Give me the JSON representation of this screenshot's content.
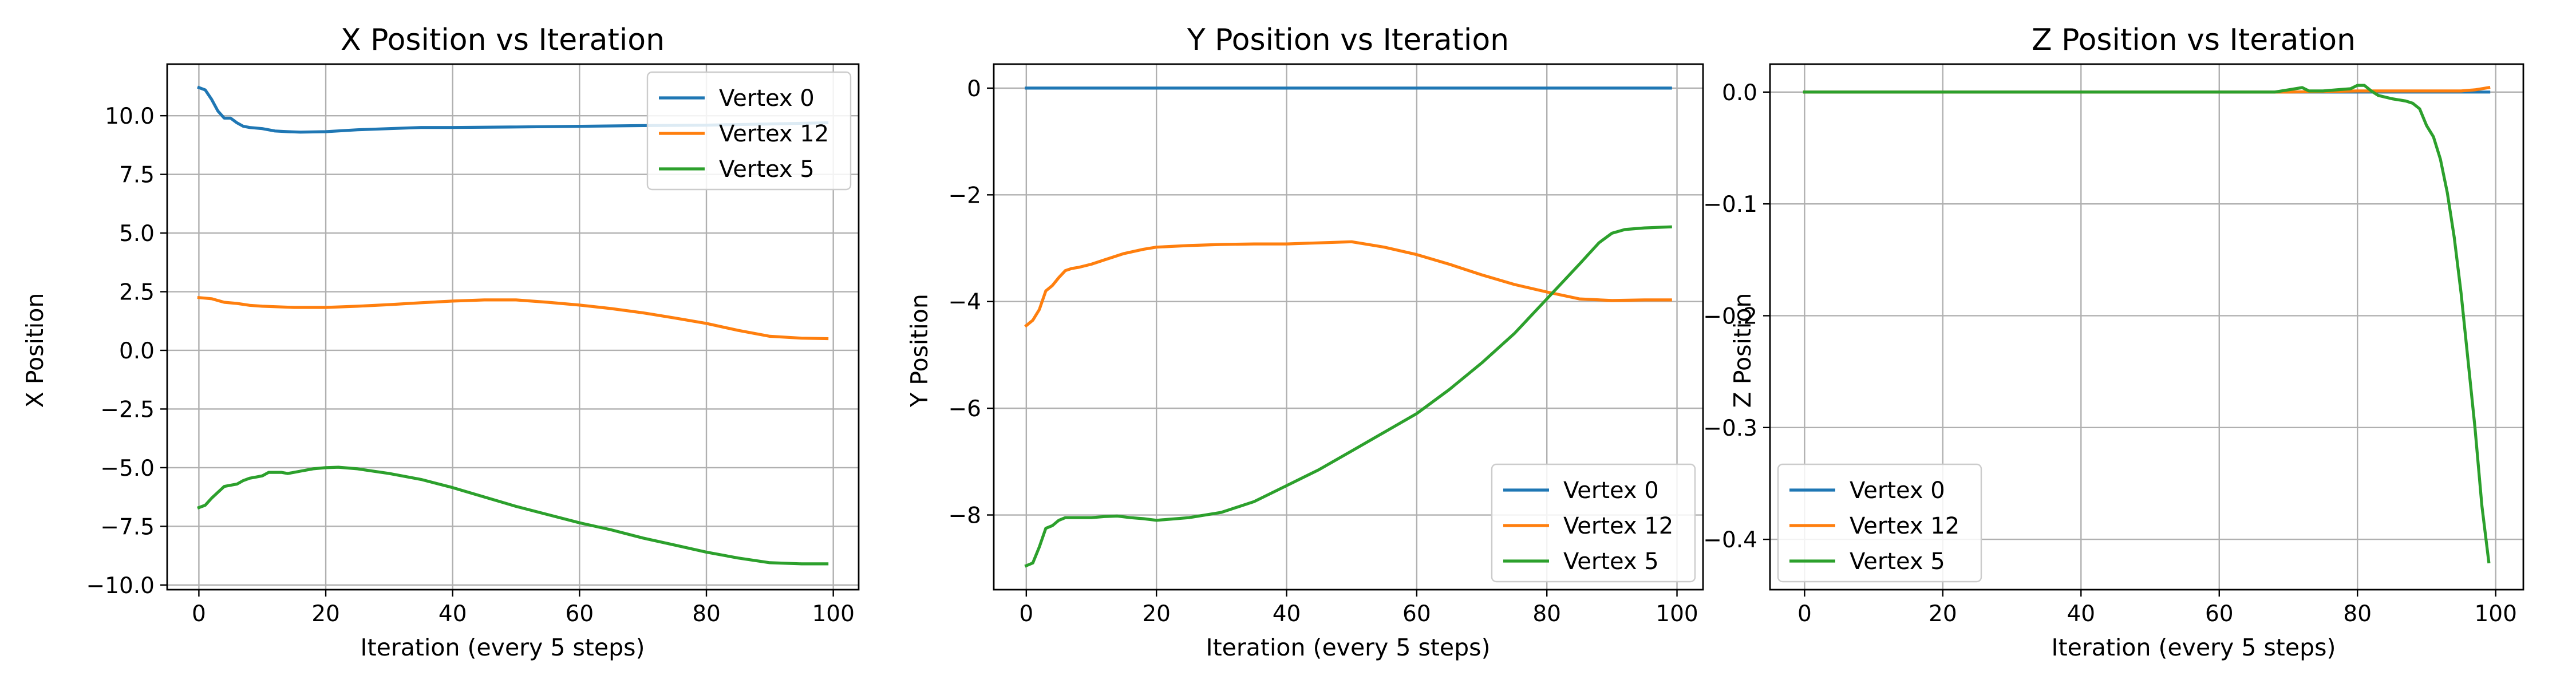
{
  "chart_data": [
    {
      "type": "line",
      "title": "X Position vs Iteration",
      "xlabel": "Iteration (every 5 steps)",
      "ylabel": "X Position",
      "xlim": [
        -5,
        104
      ],
      "ylim": [
        -10.2,
        12.2
      ],
      "xticks": [
        0,
        20,
        40,
        60,
        80,
        100
      ],
      "yticks": [
        -10.0,
        -7.5,
        -5.0,
        -2.5,
        0.0,
        2.5,
        5.0,
        7.5,
        10.0
      ],
      "ytick_labels": [
        "−10.0",
        "−7.5",
        "−5.0",
        "−2.5",
        "0.0",
        "2.5",
        "5.0",
        "7.5",
        "10.0"
      ],
      "grid": true,
      "legend": "top-right",
      "series": [
        {
          "name": "Vertex 0",
          "color": "#1f77b4",
          "x": [
            0,
            1,
            2,
            3,
            4,
            5,
            6,
            7,
            8,
            10,
            12,
            14,
            16,
            20,
            25,
            30,
            35,
            40,
            50,
            60,
            70,
            80,
            90,
            99
          ],
          "y": [
            11.2,
            11.1,
            10.7,
            10.2,
            9.9,
            9.9,
            9.7,
            9.55,
            9.5,
            9.45,
            9.35,
            9.32,
            9.3,
            9.32,
            9.4,
            9.45,
            9.5,
            9.5,
            9.52,
            9.55,
            9.58,
            9.6,
            9.65,
            9.7
          ]
        },
        {
          "name": "Vertex 12",
          "color": "#ff7f0e",
          "x": [
            0,
            2,
            4,
            6,
            8,
            10,
            15,
            20,
            25,
            30,
            35,
            40,
            45,
            50,
            55,
            60,
            65,
            70,
            75,
            80,
            85,
            90,
            95,
            99
          ],
          "y": [
            2.25,
            2.2,
            2.05,
            2.0,
            1.92,
            1.88,
            1.83,
            1.83,
            1.88,
            1.95,
            2.03,
            2.1,
            2.15,
            2.15,
            2.05,
            1.93,
            1.78,
            1.6,
            1.38,
            1.15,
            0.85,
            0.6,
            0.52,
            0.5
          ]
        },
        {
          "name": "Vertex 5",
          "color": "#2ca02c",
          "x": [
            0,
            1,
            2,
            3,
            4,
            5,
            6,
            7,
            8,
            9,
            10,
            11,
            12,
            13,
            14,
            15,
            16,
            18,
            20,
            22,
            25,
            30,
            35,
            40,
            45,
            50,
            55,
            60,
            65,
            70,
            75,
            80,
            85,
            90,
            95,
            99
          ],
          "y": [
            -6.7,
            -6.6,
            -6.3,
            -6.05,
            -5.8,
            -5.75,
            -5.7,
            -5.55,
            -5.45,
            -5.4,
            -5.35,
            -5.2,
            -5.2,
            -5.2,
            -5.25,
            -5.2,
            -5.15,
            -5.05,
            -5.0,
            -4.98,
            -5.05,
            -5.25,
            -5.5,
            -5.85,
            -6.25,
            -6.65,
            -7.0,
            -7.35,
            -7.65,
            -8.0,
            -8.3,
            -8.6,
            -8.85,
            -9.05,
            -9.1,
            -9.1
          ]
        }
      ]
    },
    {
      "type": "line",
      "title": "Y Position vs Iteration",
      "xlabel": "Iteration (every 5 steps)",
      "ylabel": "Y Position",
      "xlim": [
        -5,
        104
      ],
      "ylim": [
        -9.4,
        0.45
      ],
      "xticks": [
        0,
        20,
        40,
        60,
        80,
        100
      ],
      "yticks": [
        -8,
        -6,
        -4,
        -2,
        0
      ],
      "ytick_labels": [
        "−8",
        "−6",
        "−4",
        "−2",
        "0"
      ],
      "grid": true,
      "legend": "bottom-right",
      "series": [
        {
          "name": "Vertex 0",
          "color": "#1f77b4",
          "x": [
            0,
            20,
            40,
            60,
            80,
            99
          ],
          "y": [
            0,
            0,
            0,
            0,
            0,
            0
          ]
        },
        {
          "name": "Vertex 12",
          "color": "#ff7f0e",
          "x": [
            0,
            1,
            2,
            3,
            4,
            5,
            6,
            7,
            8,
            10,
            12,
            15,
            18,
            20,
            25,
            30,
            35,
            40,
            45,
            50,
            55,
            60,
            65,
            70,
            75,
            80,
            85,
            90,
            95,
            99
          ],
          "y": [
            -4.45,
            -4.35,
            -4.15,
            -3.8,
            -3.7,
            -3.55,
            -3.42,
            -3.38,
            -3.36,
            -3.3,
            -3.22,
            -3.1,
            -3.02,
            -2.98,
            -2.95,
            -2.93,
            -2.92,
            -2.92,
            -2.9,
            -2.88,
            -2.98,
            -3.12,
            -3.3,
            -3.5,
            -3.68,
            -3.82,
            -3.95,
            -3.98,
            -3.97,
            -3.97
          ]
        },
        {
          "name": "Vertex 5",
          "color": "#2ca02c",
          "x": [
            0,
            1,
            2,
            3,
            4,
            5,
            6,
            7,
            8,
            10,
            12,
            14,
            16,
            18,
            20,
            25,
            30,
            35,
            40,
            45,
            50,
            55,
            60,
            65,
            70,
            75,
            80,
            85,
            88,
            90,
            92,
            95,
            99
          ],
          "y": [
            -8.95,
            -8.9,
            -8.6,
            -8.25,
            -8.2,
            -8.1,
            -8.05,
            -8.05,
            -8.05,
            -8.05,
            -8.03,
            -8.02,
            -8.05,
            -8.07,
            -8.1,
            -8.05,
            -7.95,
            -7.75,
            -7.45,
            -7.15,
            -6.8,
            -6.45,
            -6.1,
            -5.65,
            -5.15,
            -4.6,
            -3.95,
            -3.3,
            -2.9,
            -2.72,
            -2.65,
            -2.62,
            -2.6
          ]
        }
      ]
    },
    {
      "type": "line",
      "title": "Z Position vs Iteration",
      "xlabel": "Iteration (every 5 steps)",
      "ylabel": "Z Position",
      "xlim": [
        -5,
        104
      ],
      "ylim": [
        -0.445,
        0.025
      ],
      "xticks": [
        0,
        20,
        40,
        60,
        80,
        100
      ],
      "yticks": [
        -0.4,
        -0.3,
        -0.2,
        -0.1,
        0.0
      ],
      "ytick_labels": [
        "−0.4",
        "−0.3",
        "−0.2",
        "−0.1",
        "0.0"
      ],
      "grid": true,
      "legend": "bottom-left",
      "series": [
        {
          "name": "Vertex 0",
          "color": "#1f77b4",
          "x": [
            0,
            20,
            40,
            60,
            80,
            99
          ],
          "y": [
            0,
            0,
            0,
            0,
            0,
            0
          ]
        },
        {
          "name": "Vertex 12",
          "color": "#ff7f0e",
          "x": [
            0,
            20,
            40,
            60,
            70,
            80,
            85,
            90,
            95,
            97,
            99
          ],
          "y": [
            0,
            0,
            0,
            0,
            0,
            0.001,
            0.001,
            0.001,
            0.001,
            0.002,
            0.004
          ]
        },
        {
          "name": "Vertex 5",
          "color": "#2ca02c",
          "x": [
            0,
            20,
            40,
            60,
            68,
            70,
            71,
            72,
            73,
            75,
            77,
            79,
            80,
            81,
            82,
            83,
            85,
            87,
            88,
            89,
            90,
            91,
            92,
            93,
            94,
            95,
            96,
            97,
            98,
            99
          ],
          "y": [
            0,
            0,
            0,
            0,
            0,
            0.002,
            0.003,
            0.004,
            0.001,
            0.001,
            0.002,
            0.003,
            0.006,
            0.006,
            0.001,
            -0.003,
            -0.006,
            -0.008,
            -0.01,
            -0.015,
            -0.03,
            -0.04,
            -0.06,
            -0.09,
            -0.13,
            -0.18,
            -0.24,
            -0.3,
            -0.37,
            -0.42
          ]
        }
      ]
    }
  ]
}
